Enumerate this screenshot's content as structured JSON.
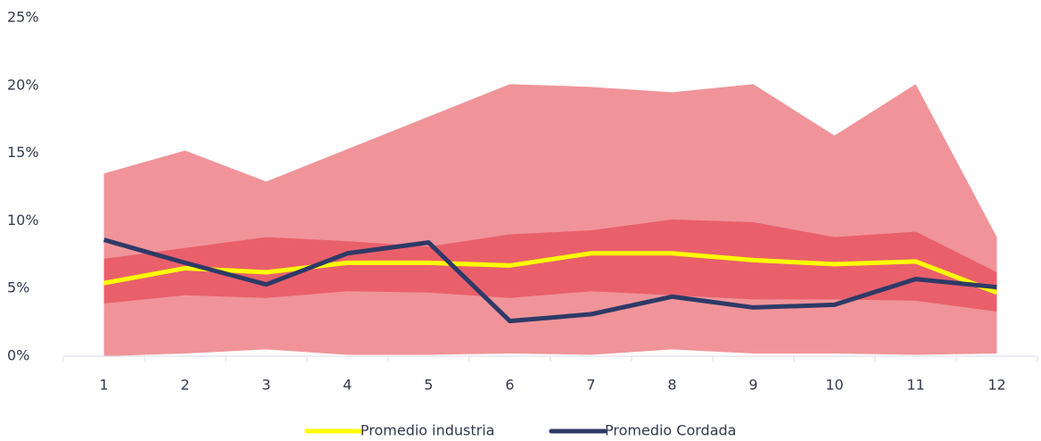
{
  "chart_data": {
    "type": "line",
    "categories": [
      "1",
      "2",
      "3",
      "4",
      "5",
      "6",
      "7",
      "8",
      "9",
      "10",
      "11",
      "12"
    ],
    "bands": [
      {
        "color": "#f09499",
        "low": [
          0,
          0.2,
          0.5,
          0.1,
          0.1,
          0.2,
          0.1,
          0.5,
          0.2,
          0.2,
          0.1,
          0.2
        ],
        "high": [
          13.5,
          15.2,
          12.9,
          15.3,
          17.7,
          20.1,
          19.9,
          19.5,
          20.1,
          16.3,
          20.1,
          8.8
        ]
      },
      {
        "color": "#e9606b",
        "low": [
          3.9,
          4.5,
          4.3,
          4.8,
          4.7,
          4.3,
          4.8,
          4.5,
          4.2,
          4.2,
          4.1,
          3.3
        ],
        "high": [
          7.2,
          8.0,
          8.8,
          8.5,
          8.1,
          9.0,
          9.3,
          10.1,
          9.9,
          8.8,
          9.2,
          6.2
        ]
      }
    ],
    "series": [
      {
        "name": "Promedio industria",
        "color": "#ffff00",
        "values": [
          5.4,
          6.5,
          6.2,
          6.9,
          6.9,
          6.7,
          7.6,
          7.6,
          7.1,
          6.8,
          7.0,
          4.7
        ]
      },
      {
        "name": "Promedio Cordada",
        "color": "#2e3a67",
        "values": [
          8.6,
          6.9,
          5.3,
          7.6,
          8.4,
          2.6,
          3.1,
          4.4,
          3.6,
          3.8,
          5.7,
          5.1
        ]
      }
    ],
    "ylim": [
      0,
      25
    ],
    "yticks": [
      {
        "value": 0,
        "label": "0%"
      },
      {
        "value": 5,
        "label": "5%"
      },
      {
        "value": 10,
        "label": "10%"
      },
      {
        "value": 15,
        "label": "15%"
      },
      {
        "value": 20,
        "label": "20%"
      },
      {
        "value": 25,
        "label": "25%"
      }
    ],
    "legend": "bottom"
  }
}
